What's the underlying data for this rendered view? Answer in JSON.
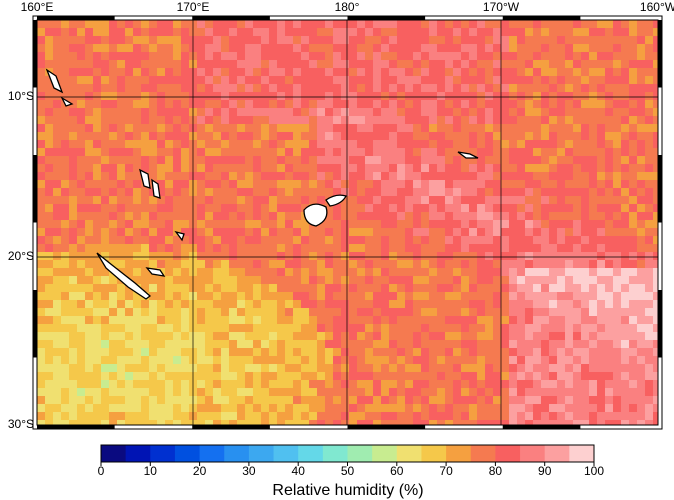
{
  "map": {
    "lon_labels": [
      "160°E",
      "170°E",
      "180°",
      "170°W",
      "160°W"
    ],
    "lat_labels": [
      "10°S",
      "20°S",
      "30°S"
    ],
    "colorbar": {
      "label": "Relative humidity (%)",
      "ticks": [
        0,
        10,
        20,
        30,
        40,
        50,
        60,
        70,
        80,
        90,
        100
      ],
      "colors": [
        "#0a0a80",
        "#0014b4",
        "#0030d0",
        "#0050e0",
        "#1470f0",
        "#2890f0",
        "#3ca8f0",
        "#50c0f0",
        "#64d8e8",
        "#80e8d0",
        "#a0ecb0",
        "#c8ec90",
        "#f0e070",
        "#f5c84a",
        "#f5a040",
        "#f57a50",
        "#f86060",
        "#fa8080",
        "#fca0a0",
        "#fdd0d0"
      ]
    }
  }
}
